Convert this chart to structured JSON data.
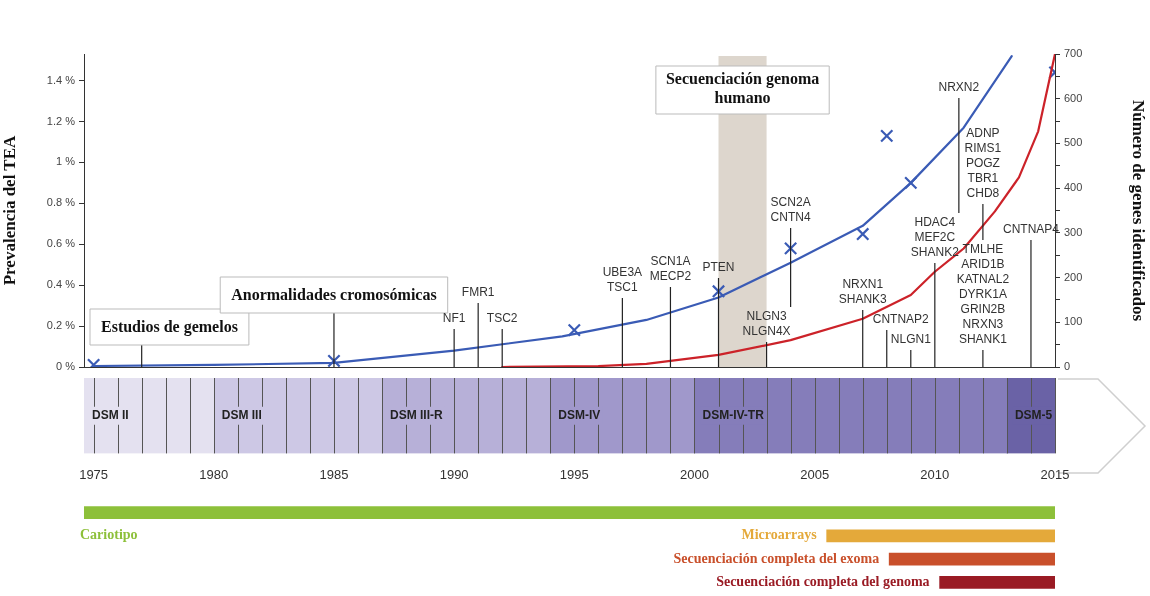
{
  "chart_data": [
    {
      "type": "line",
      "ylabel": "Prevalencia del TEA",
      "y2label": "Número de genes identificados",
      "xlim": [
        1974.6,
        2015
      ],
      "ylim": [
        0,
        1.53
      ],
      "yticks": [
        {
          "value": 0,
          "label": "0 %"
        },
        {
          "value": 0.2,
          "label": "0.2 %"
        },
        {
          "value": 0.4,
          "label": "0.4 %"
        },
        {
          "value": 0.6,
          "label": "0.6 %"
        },
        {
          "value": 0.8,
          "label": "0.8 %"
        },
        {
          "value": 1,
          "label": "1 %"
        },
        {
          "value": 1.2,
          "label": "1.2 %"
        },
        {
          "value": 1.4,
          "label": "1.4 %"
        }
      ],
      "y2lim": [
        0,
        700
      ],
      "y2ticks": [
        0,
        {
          "value": 50,
          "label": null
        },
        100,
        {
          "value": 150,
          "label": null
        },
        200,
        {
          "value": 250,
          "label": null
        },
        300,
        {
          "value": 350,
          "label": null
        },
        400,
        {
          "value": 450,
          "label": null
        },
        500,
        {
          "value": 550,
          "label": null
        },
        600,
        {
          "value": 650,
          "label": null
        },
        700
      ],
      "tick_labels": "y",
      "series": [
        {
          "type": "line",
          "color": "#3a5bb5",
          "x": [
            1975,
            1980,
            1985,
            1990,
            1994.5,
            1998,
            2001,
            2004,
            2007,
            2009,
            2011.2,
            2013.2
          ],
          "values": [
            0.005,
            0.01,
            0.02,
            0.08,
            0.15,
            0.23,
            0.34,
            0.51,
            0.69,
            0.9,
            1.17,
            1.52
          ]
        },
        {
          "type": "line",
          "axis": "y2",
          "color": "#cc2229",
          "x": [
            1992,
            1996,
            1998,
            2001,
            2004,
            2007,
            2009,
            2010,
            2011.2,
            2012.5,
            2013.5,
            2014.3,
            2015
          ],
          "values": [
            0,
            2,
            7,
            27,
            60,
            108,
            161,
            213,
            265,
            348,
            424,
            527,
            700
          ]
        },
        {
          "type": "scatter",
          "marker": "cross",
          "color": "#3a5bb5",
          "x": [
            1975,
            1985,
            1995,
            2001,
            2004,
            2007,
            2008,
            2009,
            2015
          ],
          "values": [
            0.01,
            0.03,
            0.18,
            0.37,
            0.58,
            0.65,
            1.13,
            0.9,
            1.44
          ]
        }
      ],
      "bands": [
        {
          "axis": "x",
          "from": 2001,
          "to": 2003,
          "label": "Secuenciación genoma humano",
          "color": "#ddd6cd"
        }
      ],
      "ref_lines": [
        {
          "axis": "x",
          "value": 1977,
          "label": "Estudios de gemelos"
        },
        {
          "axis": "x",
          "value": 1985,
          "label": "Anormalidades cromosómicas"
        },
        {
          "axis": "x",
          "value": 1990,
          "label": "NF1"
        },
        {
          "axis": "x",
          "value": 1991,
          "label": "FMR1"
        },
        {
          "axis": "x",
          "value": 1992,
          "label": "TSC2"
        },
        {
          "axis": "x",
          "value": 1997,
          "label": "UBE3A\nTSC1"
        },
        {
          "axis": "x",
          "value": 1999,
          "label": "SCN1A\nMECP2"
        },
        {
          "axis": "x",
          "value": 2001,
          "label": "PTEN"
        },
        {
          "axis": "x",
          "value": 2003,
          "label": "NLGN3\nNLGN4X"
        },
        {
          "axis": "x",
          "value": 2004,
          "label": "SCN2A\nCNTN4"
        },
        {
          "axis": "x",
          "value": 2007,
          "label": "NRXN1\nSHANK3"
        },
        {
          "axis": "x",
          "value": 2008,
          "label": "CNTNAP2"
        },
        {
          "axis": "x",
          "value": 2009,
          "label": "NLGN1"
        },
        {
          "axis": "x",
          "value": 2010,
          "label": "HDAC4\nMEF2C\nSHANK2"
        },
        {
          "axis": "x",
          "value": 2011,
          "label": "NRXN2"
        },
        {
          "axis": "x",
          "value": 2012,
          "label": "ADNP\nRIMS1\nPOGZ\nTBR1\nCHD8"
        },
        {
          "axis": "x",
          "value": 2012,
          "label": "TMLHE\nARID1B\nKATNAL2\nDYRK1A\nGRIN2B\nNRXN3\nSHANK1"
        },
        {
          "axis": "x",
          "value": 2014,
          "label": "CNTNAP4"
        }
      ]
    },
    {
      "type": "bar",
      "orientation": "horizontal",
      "categories": [
        null
      ],
      "xlim": [
        1974.6,
        2015
      ],
      "xticks": [
        1975,
        {
          "value": 1976,
          "label": null
        },
        {
          "value": 1977,
          "label": null
        },
        {
          "value": 1978,
          "label": null
        },
        {
          "value": 1979,
          "label": null
        },
        1980,
        {
          "value": 1981,
          "label": null
        },
        {
          "value": 1982,
          "label": null
        },
        {
          "value": 1983,
          "label": null
        },
        {
          "value": 1984,
          "label": null
        },
        1985,
        {
          "value": 1986,
          "label": null
        },
        {
          "value": 1987,
          "label": null
        },
        {
          "value": 1988,
          "label": null
        },
        {
          "value": 1989,
          "label": null
        },
        1990,
        {
          "value": 1991,
          "label": null
        },
        {
          "value": 1992,
          "label": null
        },
        {
          "value": 1993,
          "label": null
        },
        {
          "value": 1994,
          "label": null
        },
        1995,
        {
          "value": 1996,
          "label": null
        },
        {
          "value": 1997,
          "label": null
        },
        {
          "value": 1998,
          "label": null
        },
        {
          "value": 1999,
          "label": null
        },
        2000,
        {
          "value": 2001,
          "label": null
        },
        {
          "value": 2002,
          "label": null
        },
        {
          "value": 2003,
          "label": null
        },
        {
          "value": 2004,
          "label": null
        },
        2005,
        {
          "value": 2006,
          "label": null
        },
        {
          "value": 2007,
          "label": null
        },
        {
          "value": 2008,
          "label": null
        },
        {
          "value": 2009,
          "label": null
        },
        2010,
        {
          "value": 2011,
          "label": null
        },
        {
          "value": 2012,
          "label": null
        },
        {
          "value": 2013,
          "label": null
        },
        {
          "value": 2014,
          "label": null
        },
        2015
      ],
      "grid": "x",
      "tick_labels": "x",
      "series": [
        {
          "name": "DSM II",
          "color": "#e4e1f0",
          "base": [
            1974.6
          ],
          "values": [
            5.4
          ]
        },
        {
          "name": "DSM III",
          "color": "#cdc8e5",
          "base": [
            1980
          ],
          "values": [
            7
          ]
        },
        {
          "name": "DSM III-R",
          "color": "#b7b0d8",
          "base": [
            1987
          ],
          "values": [
            7
          ]
        },
        {
          "name": "DSM-IV",
          "color": "#a098cb",
          "base": [
            1994
          ],
          "values": [
            6
          ]
        },
        {
          "name": "DSM-IV-TR",
          "color": "#857dba",
          "base": [
            2000
          ],
          "values": [
            13
          ]
        },
        {
          "name": "DSM-5",
          "color": "#6a62a6",
          "base": [
            2013
          ],
          "values": [
            2
          ]
        }
      ]
    },
    {
      "type": "bar",
      "orientation": "horizontal",
      "categories": [
        "Cariotipo",
        "Microarrays",
        "Secuenciación completa del exoma",
        "Secuenciación completa del genoma"
      ],
      "base": [
        1974.6,
        2005.5,
        2008.1,
        2010.2
      ],
      "values": [
        40.4,
        9.5,
        6.9,
        4.8
      ],
      "colors": [
        "#8dc03a",
        "#e4a93a",
        "#c9502b",
        "#9a1b24"
      ],
      "xlim": [
        1974.6,
        2015
      ],
      "tick_labels": false
    }
  ]
}
